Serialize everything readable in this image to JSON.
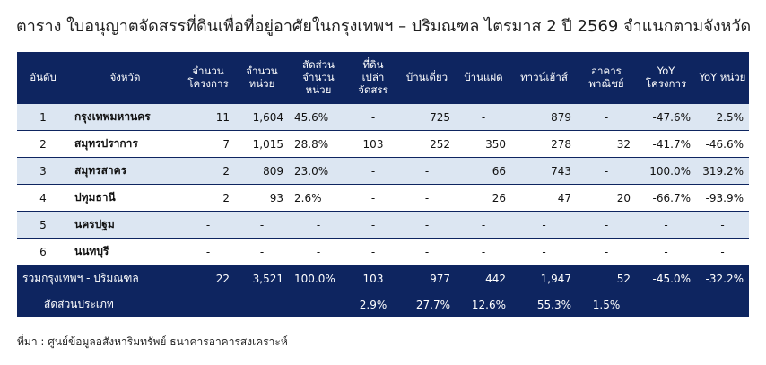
{
  "title": "ตาราง ใบอนุญาตจัดสรรที่ดินเพื่อที่อยู่อาศัยในกรุงเทพฯ – ปริมณฑล ไตรมาส 2 ปี 2569 จำแนกตามจังหวัด",
  "headers": {
    "rank": "อันดับ",
    "province": "จังหวัด",
    "projects": "จำนวน โครงการ",
    "units": "จำนวน หน่วย",
    "share": "สัดส่วน จำนวน หน่วย",
    "land": "ที่ดิน เปล่า จัดสรร",
    "detached": "บ้านเดี่ยว",
    "twin": "บ้านแฝด",
    "townhouse": "ทาวน์เฮ้าส์",
    "commercial": "อาคาร พาณิชย์",
    "yoy_projects": "YoY โครงการ",
    "yoy_units": "YoY หน่วย"
  },
  "rows": [
    {
      "rank": "1",
      "province": "กรุงเทพมหานคร",
      "projects": "11",
      "units": "1,604",
      "share": "45.6%",
      "land": "-",
      "detached": "725",
      "twin": "-",
      "townhouse": "879",
      "commercial": "-",
      "yoy_projects": "-47.6%",
      "yoy_units": "2.5%"
    },
    {
      "rank": "2",
      "province": "สมุทรปราการ",
      "projects": "7",
      "units": "1,015",
      "share": "28.8%",
      "land": "103",
      "detached": "252",
      "twin": "350",
      "townhouse": "278",
      "commercial": "32",
      "yoy_projects": "-41.7%",
      "yoy_units": "-46.6%"
    },
    {
      "rank": "3",
      "province": "สมุทรสาคร",
      "projects": "2",
      "units": "809",
      "share": "23.0%",
      "land": "-",
      "detached": "-",
      "twin": "66",
      "townhouse": "743",
      "commercial": "-",
      "yoy_projects": "100.0%",
      "yoy_units": "319.2%"
    },
    {
      "rank": "4",
      "province": "ปทุมธานี",
      "projects": "2",
      "units": "93",
      "share": "2.6%",
      "land": "-",
      "detached": "-",
      "twin": "26",
      "townhouse": "47",
      "commercial": "20",
      "yoy_projects": "-66.7%",
      "yoy_units": "-93.9%"
    },
    {
      "rank": "5",
      "province": "นครปฐม",
      "projects": "-",
      "units": "-",
      "share": "-",
      "land": "-",
      "detached": "-",
      "twin": "-",
      "townhouse": "-",
      "commercial": "-",
      "yoy_projects": "-",
      "yoy_units": "-"
    },
    {
      "rank": "6",
      "province": "นนทบุรี",
      "projects": "-",
      "units": "-",
      "share": "-",
      "land": "-",
      "detached": "-",
      "twin": "-",
      "townhouse": "-",
      "commercial": "-",
      "yoy_projects": "-",
      "yoy_units": "-"
    }
  ],
  "total": {
    "label": "รวมกรุงเทพฯ - ปริมณฑล",
    "projects": "22",
    "units": "3,521",
    "share": "100.0%",
    "land": "103",
    "detached": "977",
    "twin": "442",
    "townhouse": "1,947",
    "commercial": "52",
    "yoy_projects": "-45.0%",
    "yoy_units": "-32.2%"
  },
  "ratio": {
    "label": "สัดส่วนประเภท",
    "land": "2.9%",
    "detached": "27.7%",
    "twin": "12.6%",
    "townhouse": "55.3%",
    "commercial": "1.5%"
  },
  "source": "ที่มา : ศูนย์ข้อมูลอสังหาริมทรัพย์ ธนาคารอาคารสงเคราะห์",
  "colors": {
    "header_bg": "#0e2560",
    "row_alt": "#dce6f2",
    "negative": "#e32222",
    "positive": "#1aa33c"
  }
}
